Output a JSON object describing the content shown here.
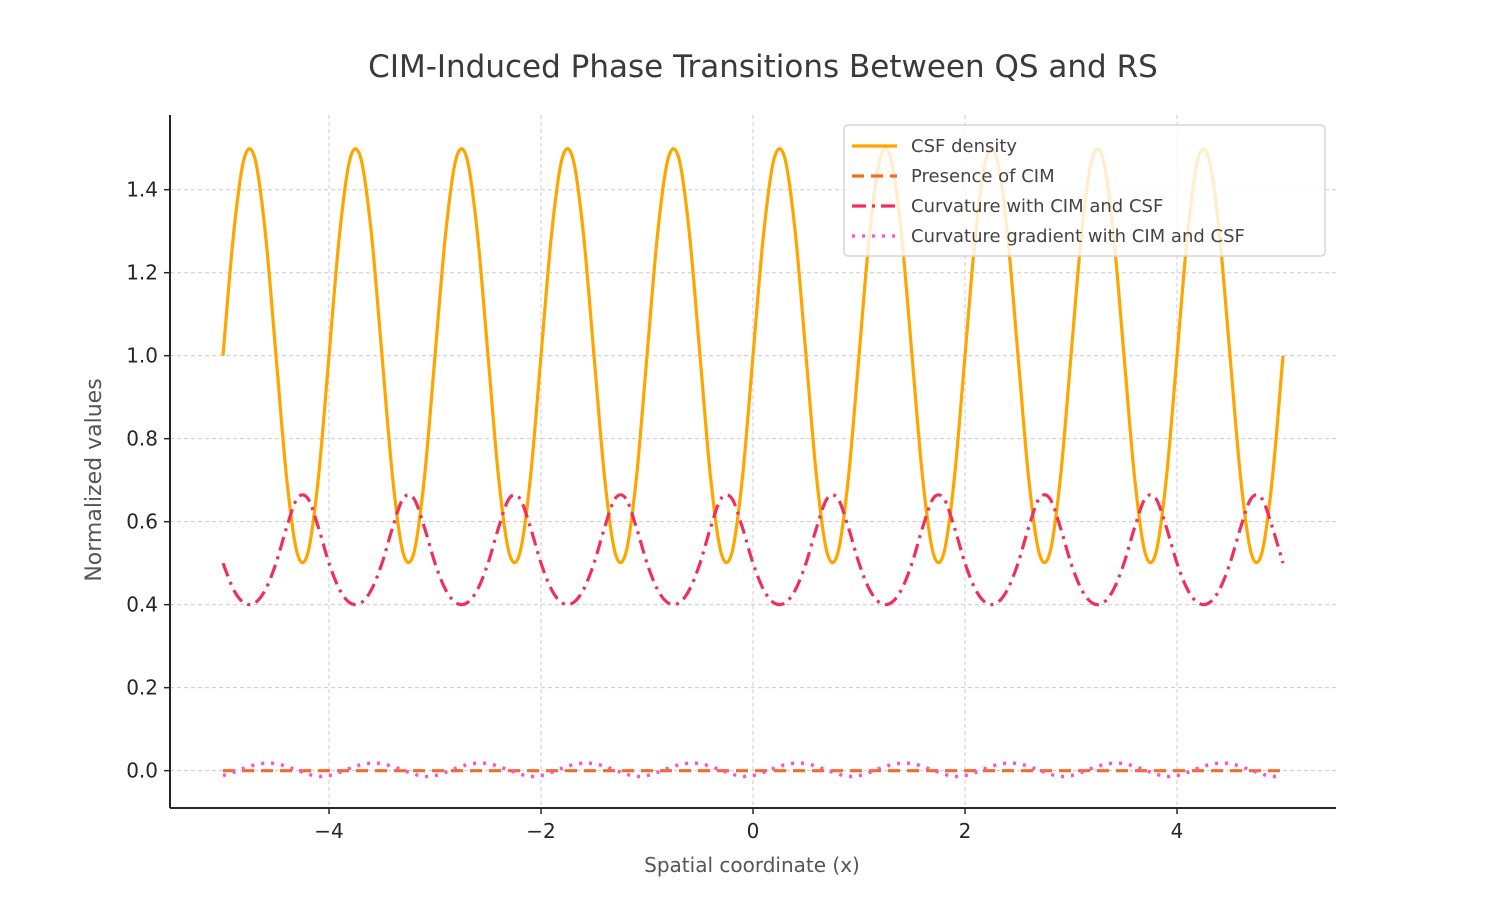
{
  "chart_data": {
    "type": "line",
    "title": "CIM-Induced Phase Transitions Between QS and RS",
    "xlabel": "Spatial coordinate (x)",
    "ylabel": "Normalized values",
    "xlim": [
      -5.5,
      5.5
    ],
    "ylim": [
      -0.09,
      1.58
    ],
    "xticks": [
      -4,
      -2,
      0,
      2,
      4
    ],
    "xtick_labels": [
      "−4",
      "−2",
      "0",
      "2",
      "4"
    ],
    "yticks": [
      0.0,
      0.2,
      0.4,
      0.6,
      0.8,
      1.0,
      1.2,
      1.4
    ],
    "ytick_labels": [
      "0.0",
      "0.2",
      "0.4",
      "0.6",
      "0.8",
      "1.0",
      "1.2",
      "1.4"
    ],
    "grid": true,
    "legend_position": "top-right",
    "x": [
      -5.0,
      -4.9,
      -4.8,
      -4.7,
      -4.6,
      -4.5,
      -4.4,
      -4.3,
      -4.2,
      -4.1,
      -4.0,
      -3.9,
      -3.8,
      -3.7,
      -3.6,
      -3.5,
      -3.4,
      -3.3,
      -3.2,
      -3.1,
      -3.0,
      -2.9,
      -2.8,
      -2.7,
      -2.6,
      -2.5,
      -2.4,
      -2.3,
      -2.2,
      -2.1,
      -2.0,
      -1.9,
      -1.8,
      -1.7,
      -1.6,
      -1.5,
      -1.4,
      -1.3,
      -1.2,
      -1.1,
      -1.0,
      -0.9,
      -0.8,
      -0.7,
      -0.6,
      -0.5,
      -0.4,
      -0.3,
      -0.2,
      -0.1,
      0.0,
      0.1,
      0.2,
      0.3,
      0.4,
      0.5,
      0.6,
      0.7,
      0.8,
      0.9,
      1.0,
      1.1,
      1.2,
      1.3,
      1.4,
      1.5,
      1.6,
      1.7,
      1.8,
      1.9,
      2.0,
      2.1,
      2.2,
      2.3,
      2.4,
      2.5,
      2.6,
      2.7,
      2.8,
      2.9,
      3.0,
      3.1,
      3.2,
      3.3,
      3.4,
      3.5,
      3.6,
      3.7,
      3.8,
      3.9,
      4.0,
      4.1,
      4.2,
      4.3,
      4.4,
      4.5,
      4.6,
      4.7,
      4.8,
      4.9,
      5.0
    ],
    "series": [
      {
        "name": "CSF density",
        "color": "#FFA500",
        "style": "solid",
        "values": [
          1.0,
          1.294,
          1.476,
          1.476,
          1.294,
          1.0,
          0.706,
          0.524,
          0.524,
          0.706,
          1.0,
          1.294,
          1.476,
          1.476,
          1.294,
          1.0,
          0.706,
          0.524,
          0.524,
          0.706,
          1.0,
          1.294,
          1.476,
          1.476,
          1.294,
          1.0,
          0.706,
          0.524,
          0.524,
          0.706,
          1.0,
          1.294,
          1.476,
          1.476,
          1.294,
          1.0,
          0.706,
          0.524,
          0.524,
          0.706,
          1.0,
          1.294,
          1.476,
          1.476,
          1.294,
          1.0,
          0.706,
          0.524,
          0.524,
          0.706,
          1.0,
          1.294,
          1.476,
          1.476,
          1.294,
          1.0,
          0.706,
          0.524,
          0.524,
          0.706,
          1.0,
          1.294,
          1.476,
          1.476,
          1.294,
          1.0,
          0.706,
          0.524,
          0.524,
          0.706,
          1.0,
          1.294,
          1.476,
          1.476,
          1.294,
          1.0,
          0.706,
          0.524,
          0.524,
          0.706,
          1.0,
          1.294,
          1.476,
          1.476,
          1.294,
          1.0,
          0.706,
          0.524,
          0.524,
          0.706,
          1.0,
          1.294,
          1.476,
          1.476,
          1.294,
          1.0,
          0.706,
          0.524,
          0.524,
          0.706,
          1.0
        ]
      },
      {
        "name": "Presence of CIM",
        "color": "#F46B2A",
        "style": "dashed",
        "values": [
          0,
          0,
          0,
          0,
          0,
          0,
          0,
          0,
          0,
          0,
          0,
          0,
          0,
          0,
          0,
          0,
          0,
          0,
          0,
          0,
          0,
          0,
          0,
          0,
          0,
          0,
          0,
          0,
          0,
          0,
          0,
          0,
          0,
          0,
          0,
          0,
          0,
          0,
          0,
          0,
          0,
          0,
          0,
          0,
          0,
          0,
          0,
          0,
          0,
          0,
          0,
          0,
          0,
          0,
          0,
          0,
          0,
          0,
          0,
          0,
          0,
          0,
          0,
          0,
          0,
          0,
          0,
          0,
          0,
          0,
          0,
          0,
          0,
          0,
          0,
          0,
          0,
          0,
          0,
          0,
          0,
          0,
          0,
          0,
          0,
          0,
          0,
          0,
          0,
          0,
          0,
          0,
          0,
          0,
          0,
          0,
          0,
          0,
          0,
          0,
          0
        ]
      },
      {
        "name": "Curvature with CIM and CSF",
        "color": "#F0305A",
        "style": "dashdot",
        "values": [
          0.5,
          0.436,
          0.404,
          0.404,
          0.436,
          0.5,
          0.586,
          0.656,
          0.656,
          0.586,
          0.5,
          0.436,
          0.404,
          0.404,
          0.436,
          0.5,
          0.586,
          0.656,
          0.656,
          0.586,
          0.5,
          0.436,
          0.404,
          0.404,
          0.436,
          0.5,
          0.586,
          0.656,
          0.656,
          0.586,
          0.5,
          0.436,
          0.404,
          0.404,
          0.436,
          0.5,
          0.586,
          0.656,
          0.656,
          0.586,
          0.5,
          0.436,
          0.404,
          0.404,
          0.436,
          0.5,
          0.586,
          0.656,
          0.656,
          0.586,
          0.5,
          0.436,
          0.404,
          0.404,
          0.436,
          0.5,
          0.586,
          0.656,
          0.656,
          0.586,
          0.5,
          0.436,
          0.404,
          0.404,
          0.436,
          0.5,
          0.586,
          0.656,
          0.656,
          0.586,
          0.5,
          0.436,
          0.404,
          0.404,
          0.436,
          0.5,
          0.586,
          0.656,
          0.656,
          0.586,
          0.5,
          0.436,
          0.404,
          0.404,
          0.436,
          0.5,
          0.586,
          0.656,
          0.656,
          0.586,
          0.5,
          0.436,
          0.404,
          0.404,
          0.436,
          0.5,
          0.586,
          0.656,
          0.656,
          0.586,
          0.5
        ]
      },
      {
        "name": "Curvature gradient with CIM and CSF",
        "color": "#FF4FD2",
        "style": "dotted",
        "values": [
          -0.012,
          -0.004,
          0.006,
          0.014,
          0.018,
          0.017,
          0.01,
          0.001,
          -0.008,
          -0.014,
          -0.012,
          -0.004,
          0.006,
          0.014,
          0.018,
          0.017,
          0.01,
          0.001,
          -0.008,
          -0.014,
          -0.012,
          -0.004,
          0.006,
          0.014,
          0.018,
          0.017,
          0.01,
          0.001,
          -0.008,
          -0.014,
          -0.012,
          -0.004,
          0.006,
          0.014,
          0.018,
          0.017,
          0.01,
          0.001,
          -0.008,
          -0.014,
          -0.012,
          -0.004,
          0.006,
          0.014,
          0.018,
          0.017,
          0.01,
          0.001,
          -0.008,
          -0.014,
          -0.012,
          -0.004,
          0.006,
          0.014,
          0.018,
          0.017,
          0.01,
          0.001,
          -0.008,
          -0.014,
          -0.012,
          -0.004,
          0.006,
          0.014,
          0.018,
          0.017,
          0.01,
          0.001,
          -0.008,
          -0.014,
          -0.012,
          -0.004,
          0.006,
          0.014,
          0.018,
          0.017,
          0.01,
          0.001,
          -0.008,
          -0.014,
          -0.012,
          -0.004,
          0.006,
          0.014,
          0.018,
          0.017,
          0.01,
          0.001,
          -0.008,
          -0.014,
          -0.012,
          -0.004,
          0.006,
          0.014,
          0.018,
          0.017,
          0.01,
          0.001,
          -0.008,
          -0.014,
          -0.012
        ]
      }
    ]
  }
}
